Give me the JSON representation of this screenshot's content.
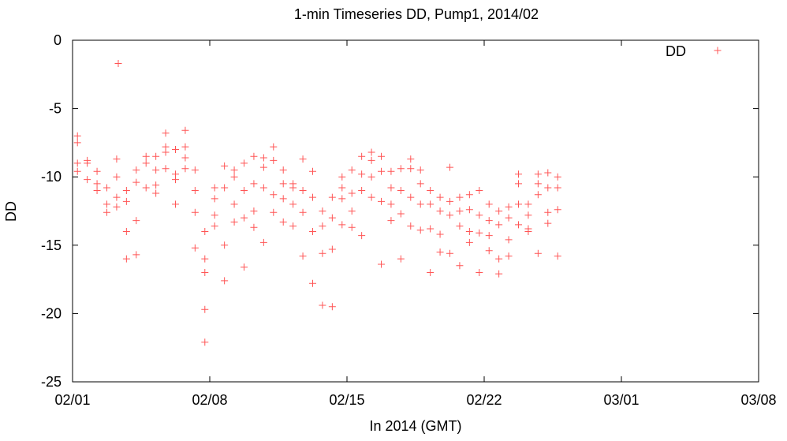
{
  "chart_data": {
    "type": "scatter",
    "title": "1-min Timeseries DD, Pump1, 2014/02",
    "xlabel": "In 2014 (GMT)",
    "ylabel": "DD",
    "xlim": [
      "2014-02-01",
      "2014-03-08"
    ],
    "ylim": [
      -25,
      0
    ],
    "xticks": [
      {
        "date": "2014-02-01",
        "label": "02/01"
      },
      {
        "date": "2014-02-08",
        "label": "02/08"
      },
      {
        "date": "2014-02-15",
        "label": "02/15"
      },
      {
        "date": "2014-02-22",
        "label": "02/22"
      },
      {
        "date": "2014-03-01",
        "label": "03/01"
      },
      {
        "date": "2014-03-08",
        "label": "03/08"
      }
    ],
    "yticks": [
      0,
      -5,
      -10,
      -15,
      -20,
      -25
    ],
    "grid": false,
    "legend_position": "top-right",
    "marker": "+",
    "series": [
      {
        "name": "DD",
        "color": "#ff5555",
        "points": [
          [
            "2014-02-01T06:00",
            -9.0
          ],
          [
            "2014-02-01T06:00",
            -9.6
          ],
          [
            "2014-02-01T06:00",
            -7.5
          ],
          [
            "2014-02-01T06:00",
            -7.0
          ],
          [
            "2014-02-01T18:00",
            -9.0
          ],
          [
            "2014-02-01T18:00",
            -10.2
          ],
          [
            "2014-02-01T18:00",
            -8.8
          ],
          [
            "2014-02-02T06:00",
            -10.5
          ],
          [
            "2014-02-02T06:00",
            -11.0
          ],
          [
            "2014-02-02T06:00",
            -9.6
          ],
          [
            "2014-02-02T18:00",
            -12.0
          ],
          [
            "2014-02-02T18:00",
            -12.6
          ],
          [
            "2014-02-02T18:00",
            -10.8
          ],
          [
            "2014-02-03T06:00",
            -10.0
          ],
          [
            "2014-02-03T06:00",
            -11.5
          ],
          [
            "2014-02-03T06:00",
            -12.2
          ],
          [
            "2014-02-03T06:00",
            -8.7
          ],
          [
            "2014-02-03T08:00",
            -1.7
          ],
          [
            "2014-02-03T18:00",
            -11.0
          ],
          [
            "2014-02-03T18:00",
            -14.0
          ],
          [
            "2014-02-03T18:00",
            -16.0
          ],
          [
            "2014-02-03T18:00",
            -11.8
          ],
          [
            "2014-02-04T06:00",
            -9.5
          ],
          [
            "2014-02-04T06:00",
            -10.4
          ],
          [
            "2014-02-04T06:00",
            -13.2
          ],
          [
            "2014-02-04T06:00",
            -15.7
          ],
          [
            "2014-02-04T18:00",
            -9.0
          ],
          [
            "2014-02-04T18:00",
            -10.8
          ],
          [
            "2014-02-04T18:00",
            -8.5
          ],
          [
            "2014-02-05T06:00",
            -8.5
          ],
          [
            "2014-02-05T06:00",
            -10.6
          ],
          [
            "2014-02-05T06:00",
            -11.2
          ],
          [
            "2014-02-05T06:00",
            -9.5
          ],
          [
            "2014-02-05T18:00",
            -7.8
          ],
          [
            "2014-02-05T18:00",
            -8.2
          ],
          [
            "2014-02-05T18:00",
            -6.8
          ],
          [
            "2014-02-05T18:00",
            -9.4
          ],
          [
            "2014-02-06T06:00",
            -8.0
          ],
          [
            "2014-02-06T06:00",
            -10.2
          ],
          [
            "2014-02-06T06:00",
            -12.0
          ],
          [
            "2014-02-06T06:00",
            -9.8
          ],
          [
            "2014-02-06T18:00",
            -6.6
          ],
          [
            "2014-02-06T18:00",
            -8.6
          ],
          [
            "2014-02-06T18:00",
            -9.4
          ],
          [
            "2014-02-06T18:00",
            -7.8
          ],
          [
            "2014-02-07T06:00",
            -9.5
          ],
          [
            "2014-02-07T06:00",
            -12.6
          ],
          [
            "2014-02-07T06:00",
            -15.2
          ],
          [
            "2014-02-07T06:00",
            -11.0
          ],
          [
            "2014-02-07T18:00",
            -14.0
          ],
          [
            "2014-02-07T18:00",
            -16.0
          ],
          [
            "2014-02-07T18:00",
            -19.7
          ],
          [
            "2014-02-07T18:00",
            -22.1
          ],
          [
            "2014-02-07T18:00",
            -17.0
          ],
          [
            "2014-02-08T06:00",
            -10.8
          ],
          [
            "2014-02-08T06:00",
            -11.6
          ],
          [
            "2014-02-08T06:00",
            -12.8
          ],
          [
            "2014-02-08T06:00",
            -13.6
          ],
          [
            "2014-02-08T18:00",
            -9.2
          ],
          [
            "2014-02-08T18:00",
            -10.8
          ],
          [
            "2014-02-08T18:00",
            -15.0
          ],
          [
            "2014-02-08T18:00",
            -17.6
          ],
          [
            "2014-02-09T06:00",
            -10.0
          ],
          [
            "2014-02-09T06:00",
            -12.0
          ],
          [
            "2014-02-09T06:00",
            -13.3
          ],
          [
            "2014-02-09T06:00",
            -9.5
          ],
          [
            "2014-02-09T18:00",
            -9.0
          ],
          [
            "2014-02-09T18:00",
            -11.0
          ],
          [
            "2014-02-09T18:00",
            -13.0
          ],
          [
            "2014-02-09T18:00",
            -16.6
          ],
          [
            "2014-02-10T06:00",
            -8.5
          ],
          [
            "2014-02-10T06:00",
            -10.5
          ],
          [
            "2014-02-10T06:00",
            -12.5
          ],
          [
            "2014-02-10T06:00",
            -13.7
          ],
          [
            "2014-02-10T18:00",
            -8.6
          ],
          [
            "2014-02-10T18:00",
            -9.3
          ],
          [
            "2014-02-10T18:00",
            -10.8
          ],
          [
            "2014-02-10T18:00",
            -14.8
          ],
          [
            "2014-02-11T06:00",
            -7.8
          ],
          [
            "2014-02-11T06:00",
            -8.8
          ],
          [
            "2014-02-11T06:00",
            -11.3
          ],
          [
            "2014-02-11T06:00",
            -12.6
          ],
          [
            "2014-02-11T18:00",
            -9.5
          ],
          [
            "2014-02-11T18:00",
            -10.5
          ],
          [
            "2014-02-11T18:00",
            -11.6
          ],
          [
            "2014-02-11T18:00",
            -13.3
          ],
          [
            "2014-02-12T06:00",
            -10.5
          ],
          [
            "2014-02-12T06:00",
            -12.0
          ],
          [
            "2014-02-12T06:00",
            -13.6
          ],
          [
            "2014-02-12T06:00",
            -10.8
          ],
          [
            "2014-02-12T18:00",
            -11.0
          ],
          [
            "2014-02-12T18:00",
            -12.6
          ],
          [
            "2014-02-12T18:00",
            -15.8
          ],
          [
            "2014-02-12T18:00",
            -8.7
          ],
          [
            "2014-02-13T06:00",
            -9.6
          ],
          [
            "2014-02-13T06:00",
            -11.5
          ],
          [
            "2014-02-13T06:00",
            -14.0
          ],
          [
            "2014-02-13T06:00",
            -17.8
          ],
          [
            "2014-02-13T18:00",
            -12.5
          ],
          [
            "2014-02-13T18:00",
            -13.6
          ],
          [
            "2014-02-13T18:00",
            -15.6
          ],
          [
            "2014-02-13T18:00",
            -19.4
          ],
          [
            "2014-02-14T06:00",
            -11.5
          ],
          [
            "2014-02-14T06:00",
            -13.0
          ],
          [
            "2014-02-14T06:00",
            -15.3
          ],
          [
            "2014-02-14T06:00",
            -19.5
          ],
          [
            "2014-02-14T18:00",
            -10.0
          ],
          [
            "2014-02-14T18:00",
            -11.6
          ],
          [
            "2014-02-14T18:00",
            -13.5
          ],
          [
            "2014-02-14T18:00",
            -10.8
          ],
          [
            "2014-02-15T06:00",
            -9.5
          ],
          [
            "2014-02-15T06:00",
            -11.2
          ],
          [
            "2014-02-15T06:00",
            -12.5
          ],
          [
            "2014-02-15T06:00",
            -13.7
          ],
          [
            "2014-02-15T18:00",
            -8.5
          ],
          [
            "2014-02-15T18:00",
            -9.8
          ],
          [
            "2014-02-15T18:00",
            -11.0
          ],
          [
            "2014-02-15T18:00",
            -14.3
          ],
          [
            "2014-02-16T06:00",
            -8.2
          ],
          [
            "2014-02-16T06:00",
            -8.8
          ],
          [
            "2014-02-16T06:00",
            -10.0
          ],
          [
            "2014-02-16T06:00",
            -11.5
          ],
          [
            "2014-02-16T18:00",
            -8.5
          ],
          [
            "2014-02-16T18:00",
            -9.6
          ],
          [
            "2014-02-16T18:00",
            -11.8
          ],
          [
            "2014-02-16T18:00",
            -16.4
          ],
          [
            "2014-02-17T06:00",
            -9.6
          ],
          [
            "2014-02-17T06:00",
            -10.8
          ],
          [
            "2014-02-17T06:00",
            -12.0
          ],
          [
            "2014-02-17T06:00",
            -13.2
          ],
          [
            "2014-02-17T18:00",
            -9.4
          ],
          [
            "2014-02-17T18:00",
            -11.0
          ],
          [
            "2014-02-17T18:00",
            -12.7
          ],
          [
            "2014-02-17T18:00",
            -16.0
          ],
          [
            "2014-02-18T06:00",
            -8.7
          ],
          [
            "2014-02-18T06:00",
            -9.4
          ],
          [
            "2014-02-18T06:00",
            -11.5
          ],
          [
            "2014-02-18T06:00",
            -13.6
          ],
          [
            "2014-02-18T18:00",
            -9.5
          ],
          [
            "2014-02-18T18:00",
            -10.5
          ],
          [
            "2014-02-18T18:00",
            -12.0
          ],
          [
            "2014-02-18T18:00",
            -13.9
          ],
          [
            "2014-02-19T06:00",
            -11.0
          ],
          [
            "2014-02-19T06:00",
            -12.0
          ],
          [
            "2014-02-19T06:00",
            -13.8
          ],
          [
            "2014-02-19T06:00",
            -17.0
          ],
          [
            "2014-02-19T18:00",
            -11.5
          ],
          [
            "2014-02-19T18:00",
            -12.5
          ],
          [
            "2014-02-19T18:00",
            -14.2
          ],
          [
            "2014-02-19T18:00",
            -15.5
          ],
          [
            "2014-02-20T06:00",
            -9.3
          ],
          [
            "2014-02-20T06:00",
            -11.8
          ],
          [
            "2014-02-20T06:00",
            -12.8
          ],
          [
            "2014-02-20T06:00",
            -15.6
          ],
          [
            "2014-02-20T18:00",
            -11.5
          ],
          [
            "2014-02-20T18:00",
            -12.5
          ],
          [
            "2014-02-20T18:00",
            -13.6
          ],
          [
            "2014-02-20T18:00",
            -16.5
          ],
          [
            "2014-02-21T06:00",
            -11.3
          ],
          [
            "2014-02-21T06:00",
            -12.4
          ],
          [
            "2014-02-21T06:00",
            -14.0
          ],
          [
            "2014-02-21T06:00",
            -14.8
          ],
          [
            "2014-02-21T18:00",
            -11.0
          ],
          [
            "2014-02-21T18:00",
            -12.8
          ],
          [
            "2014-02-21T18:00",
            -14.1
          ],
          [
            "2014-02-21T18:00",
            -17.0
          ],
          [
            "2014-02-22T06:00",
            -12.0
          ],
          [
            "2014-02-22T06:00",
            -13.2
          ],
          [
            "2014-02-22T06:00",
            -14.3
          ],
          [
            "2014-02-22T06:00",
            -15.4
          ],
          [
            "2014-02-22T18:00",
            -12.5
          ],
          [
            "2014-02-22T18:00",
            -13.5
          ],
          [
            "2014-02-22T18:00",
            -16.0
          ],
          [
            "2014-02-22T18:00",
            -17.1
          ],
          [
            "2014-02-23T06:00",
            -12.2
          ],
          [
            "2014-02-23T06:00",
            -13.0
          ],
          [
            "2014-02-23T06:00",
            -14.6
          ],
          [
            "2014-02-23T06:00",
            -15.8
          ],
          [
            "2014-02-23T18:00",
            -9.8
          ],
          [
            "2014-02-23T18:00",
            -10.5
          ],
          [
            "2014-02-23T18:00",
            -12.0
          ],
          [
            "2014-02-23T18:00",
            -13.5
          ],
          [
            "2014-02-24T06:00",
            -12.0
          ],
          [
            "2014-02-24T06:00",
            -12.8
          ],
          [
            "2014-02-24T06:00",
            -13.8
          ],
          [
            "2014-02-24T06:00",
            -14.0
          ],
          [
            "2014-02-24T18:00",
            -9.8
          ],
          [
            "2014-02-24T18:00",
            -10.5
          ],
          [
            "2014-02-24T18:00",
            -11.3
          ],
          [
            "2014-02-24T18:00",
            -15.6
          ],
          [
            "2014-02-25T06:00",
            -9.7
          ],
          [
            "2014-02-25T06:00",
            -10.8
          ],
          [
            "2014-02-25T06:00",
            -12.6
          ],
          [
            "2014-02-25T06:00",
            -13.4
          ],
          [
            "2014-02-25T18:00",
            -10.0
          ],
          [
            "2014-02-25T18:00",
            -10.8
          ],
          [
            "2014-02-25T18:00",
            -12.4
          ],
          [
            "2014-02-25T18:00",
            -15.8
          ]
        ]
      }
    ]
  }
}
